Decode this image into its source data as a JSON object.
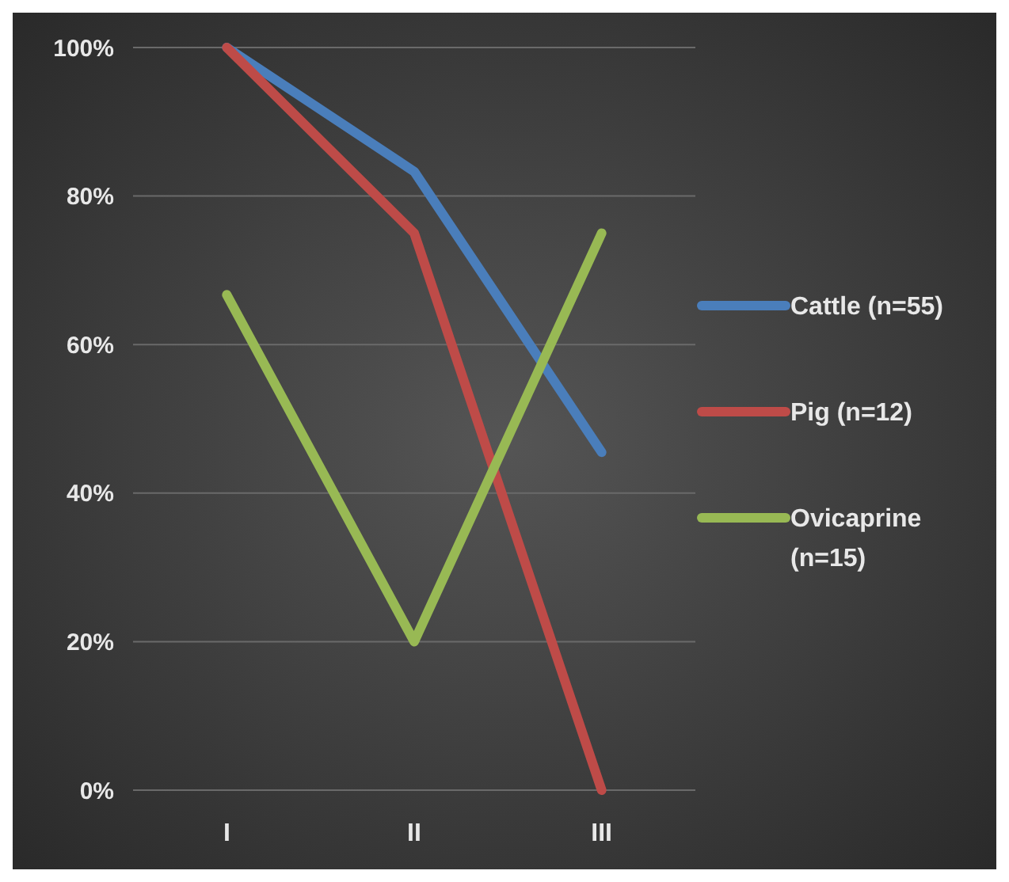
{
  "chart_data": {
    "type": "line",
    "categories": [
      "I",
      "II",
      "III"
    ],
    "series": [
      {
        "name": "Cattle (n=55)",
        "color": "#4a7ebb",
        "values": [
          100,
          83.3,
          45.5
        ]
      },
      {
        "name": "Pig (n=12)",
        "color": "#be4b48",
        "values": [
          100,
          75,
          0
        ]
      },
      {
        "name": "Ovicaprine (n=15)",
        "color": "#98b954",
        "values": [
          66.7,
          20,
          75
        ]
      }
    ],
    "ylim": [
      0,
      100
    ],
    "yticks": [
      {
        "value": 0,
        "label": "0%"
      },
      {
        "value": 20,
        "label": "20%"
      },
      {
        "value": 40,
        "label": "40%"
      },
      {
        "value": 60,
        "label": "60%"
      },
      {
        "value": 80,
        "label": "80%"
      },
      {
        "value": 100,
        "label": "100%"
      }
    ],
    "grid": "y",
    "legend": "right",
    "marker": "none",
    "line_style": "solid"
  }
}
